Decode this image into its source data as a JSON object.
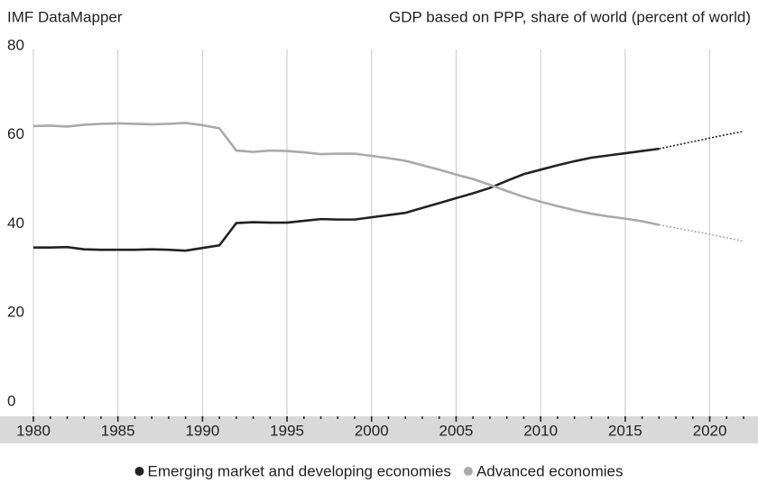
{
  "chart_data": {
    "type": "line",
    "source": "IMF DataMapper",
    "title": "GDP based on PPP, share of world (percent of world)",
    "x": [
      1980,
      1981,
      1982,
      1983,
      1984,
      1985,
      1986,
      1987,
      1988,
      1989,
      1990,
      1991,
      1992,
      1993,
      1994,
      1995,
      1996,
      1997,
      1998,
      1999,
      2000,
      2001,
      2002,
      2003,
      2004,
      2005,
      2006,
      2007,
      2008,
      2009,
      2010,
      2011,
      2012,
      2013,
      2014,
      2015,
      2016,
      2017,
      2018,
      2019,
      2020,
      2021,
      2022
    ],
    "series": [
      {
        "name": "Emerging market and developing economies",
        "color": "#222222",
        "values": [
          35.5,
          35.5,
          35.6,
          35.1,
          35.0,
          35.0,
          35.0,
          35.1,
          35.0,
          34.8,
          35.4,
          36.0,
          41.0,
          41.2,
          41.1,
          41.1,
          41.5,
          41.9,
          41.8,
          41.8,
          42.3,
          42.8,
          43.3,
          44.4,
          45.5,
          46.6,
          47.7,
          48.9,
          50.5,
          52.0,
          53.0,
          54.0,
          54.9,
          55.7,
          56.2,
          56.7,
          57.2,
          57.7,
          58.5,
          59.3,
          60.1,
          60.9,
          61.6
        ]
      },
      {
        "name": "Advanced economies",
        "color": "#aaaaaa",
        "values": [
          62.8,
          62.9,
          62.7,
          63.1,
          63.3,
          63.4,
          63.3,
          63.2,
          63.3,
          63.5,
          63.0,
          62.3,
          57.3,
          57.0,
          57.3,
          57.2,
          56.9,
          56.5,
          56.6,
          56.6,
          56.1,
          55.6,
          55.0,
          54.0,
          53.0,
          51.9,
          50.9,
          49.6,
          48.2,
          46.9,
          45.8,
          44.8,
          43.9,
          43.1,
          42.5,
          42.0,
          41.4,
          40.6,
          39.9,
          39.2,
          38.5,
          37.7,
          36.9
        ]
      }
    ],
    "projection_from": 2017,
    "xlim": [
      1980,
      2022
    ],
    "xticks": [
      1980,
      1985,
      1990,
      1995,
      2000,
      2005,
      2010,
      2015,
      2020
    ],
    "ylim": [
      0,
      80
    ],
    "yticks": [
      0,
      20,
      40,
      60,
      80
    ],
    "grid": true
  }
}
